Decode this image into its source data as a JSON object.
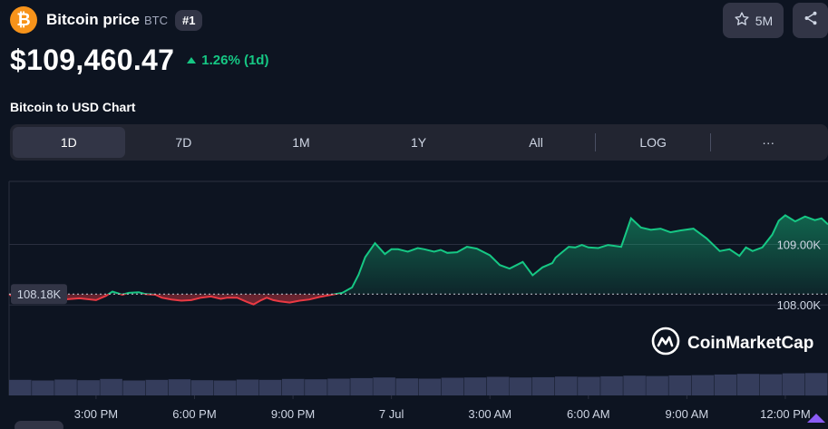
{
  "header": {
    "logo_symbol": "₿",
    "coin_name": "Bitcoin price",
    "coin_symbol": "BTC",
    "rank": "#1",
    "watchlist_count": "5M",
    "icons": {
      "logo": "bitcoin-logo-icon",
      "star": "star-icon",
      "share": "share-icon"
    }
  },
  "price": {
    "value": "$109,460.47",
    "change": "1.26% (1d)",
    "direction": "up",
    "change_color": "#16c784"
  },
  "chart_title": "Bitcoin to USD Chart",
  "range_tabs": [
    "1D",
    "7D",
    "1M",
    "1Y",
    "All"
  ],
  "range_active": "1D",
  "scale_toggle": "LOG",
  "more_label": "···",
  "watermark": "CoinMarketCap",
  "colors": {
    "up": "#16c784",
    "down": "#ea3943",
    "background": "#0d1421",
    "panel": "#222531"
  },
  "chart_data": {
    "type": "line",
    "title": "",
    "xlabel": "",
    "ylabel": "",
    "reference_value": 108180,
    "reference_label": "108.18K",
    "y_ticks": [
      108000,
      109000
    ],
    "y_tick_labels": [
      "108.00K",
      "109.00K"
    ],
    "ylim": [
      107000,
      110040
    ],
    "x_tick_labels": [
      "3:00 PM",
      "6:00 PM",
      "9:00 PM",
      "7 Jul",
      "3:00 AM",
      "6:00 AM",
      "9:00 AM",
      "12:00 PM"
    ],
    "x_tick_hours": [
      3,
      6,
      9,
      12,
      15,
      18,
      21,
      24
    ],
    "x_range_hours": [
      0.35,
      25.3
    ],
    "x_unit": "hours from 12:00 PM (6 Jul)",
    "series": [
      {
        "x": [
          0.35,
          0.5,
          0.75,
          1.0,
          1.5,
          2.0,
          2.5,
          3.0,
          3.3,
          3.5,
          3.8,
          4.0,
          4.3,
          4.5,
          4.8,
          5.0,
          5.3,
          5.6,
          5.9,
          6.2,
          6.5,
          6.8,
          7.0,
          7.3,
          7.6,
          7.8,
          8.0,
          8.2,
          8.4,
          8.6,
          8.9,
          9.2,
          9.5,
          9.8,
          10.0,
          10.3,
          10.5,
          10.8,
          11.0,
          11.2,
          11.5,
          11.8,
          12.0,
          12.2,
          12.5,
          12.8,
          13.0,
          13.3,
          13.5,
          13.7,
          14.0,
          14.3,
          14.6,
          15.0,
          15.3,
          15.6,
          16.0,
          16.3,
          16.6,
          16.9,
          17.0,
          17.2,
          17.4,
          17.6,
          17.8,
          18.0,
          18.3,
          18.6,
          19.0,
          19.3,
          19.6,
          19.9,
          20.2,
          20.5,
          20.8,
          21.2,
          21.6,
          22.0,
          22.3,
          22.6,
          22.8,
          23.0,
          23.3,
          23.6,
          23.8,
          24.0,
          24.3,
          24.6,
          24.9,
          25.1,
          25.3
        ],
        "values": [
          108180,
          108120,
          108080,
          108090,
          108100,
          108090,
          108110,
          108080,
          108150,
          108220,
          108170,
          108200,
          108210,
          108180,
          108170,
          108120,
          108090,
          108070,
          108080,
          108120,
          108140,
          108100,
          108120,
          108120,
          108050,
          108010,
          108070,
          108120,
          108080,
          108060,
          108040,
          108070,
          108090,
          108130,
          108150,
          108180,
          108200,
          108290,
          108500,
          108790,
          109020,
          108840,
          108920,
          108920,
          108880,
          108940,
          108920,
          108880,
          108910,
          108860,
          108870,
          108960,
          108930,
          108820,
          108660,
          108600,
          108710,
          108490,
          108620,
          108690,
          108780,
          108870,
          108960,
          108950,
          108990,
          108950,
          108940,
          108990,
          108960,
          109430,
          109280,
          109240,
          109260,
          109200,
          109230,
          109260,
          109100,
          108890,
          108920,
          108810,
          108950,
          108890,
          108950,
          109160,
          109390,
          109480,
          109380,
          109460,
          109400,
          109430,
          109330
        ],
        "color_above": "#16c784",
        "color_below": "#ea3943"
      }
    ],
    "volume": {
      "type": "bar",
      "values_relative": [
        0.52,
        0.5,
        0.53,
        0.51,
        0.55,
        0.5,
        0.52,
        0.54,
        0.51,
        0.5,
        0.53,
        0.52,
        0.55,
        0.54,
        0.56,
        0.58,
        0.6,
        0.57,
        0.56,
        0.59,
        0.6,
        0.62,
        0.6,
        0.61,
        0.63,
        0.62,
        0.64,
        0.66,
        0.65,
        0.67,
        0.68,
        0.7,
        0.72,
        0.71,
        0.74,
        0.75
      ]
    },
    "grid": true,
    "legend": "none"
  }
}
